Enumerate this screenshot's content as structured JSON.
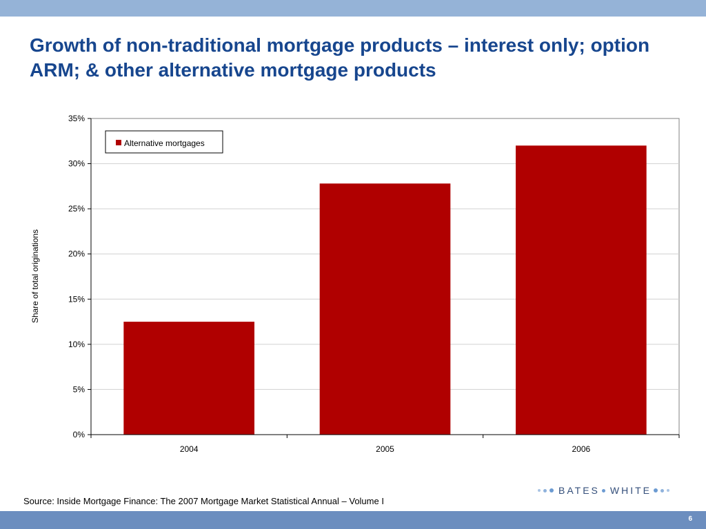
{
  "slide": {
    "title": "Growth of non-traditional mortgage products – interest only; option ARM; & other alternative mortgage products",
    "source": "Source: Inside Mortgage Finance: The 2007 Mortgage Market Statistical Annual – Volume I",
    "page_number": "6",
    "logo_left": "BATES",
    "logo_right": "WHITE"
  },
  "colors": {
    "title": "#17468e",
    "bar": "#b00000",
    "top_band": "#95b3d7",
    "bottom_band": "#6c8ebf"
  },
  "chart_data": {
    "type": "bar",
    "categories": [
      "2004",
      "2005",
      "2006"
    ],
    "series": [
      {
        "name": "Alternative mortgages",
        "values": [
          12.5,
          27.8,
          32.0
        ]
      }
    ],
    "ylabel": "Share of total originations",
    "ylim": [
      0,
      35
    ],
    "yticks": [
      "0%",
      "5%",
      "10%",
      "15%",
      "20%",
      "25%",
      "30%",
      "35%"
    ],
    "grid": true,
    "legend_position": "top-left"
  }
}
